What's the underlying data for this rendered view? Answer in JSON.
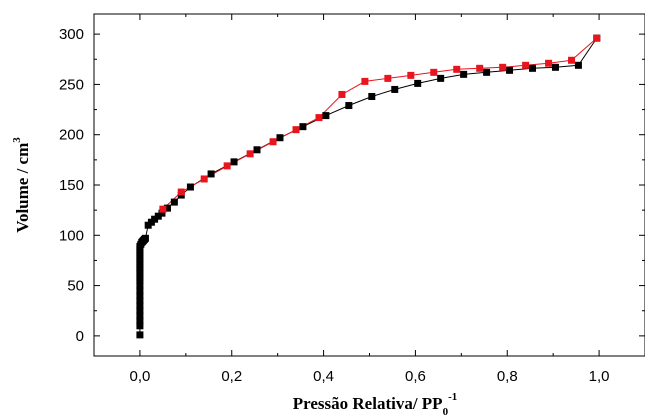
{
  "chart_data": {
    "type": "scatter",
    "xlabel": "Pressão Relativa/ PP",
    "xlabel_sub": "0",
    "xlabel_sup": "-1",
    "ylabel": "Volume / cm",
    "ylabel_sup": "3",
    "xlim": [
      -0.1,
      1.1
    ],
    "ylim": [
      -20,
      320
    ],
    "x_ticks": [
      0.0,
      0.2,
      0.4,
      0.6,
      0.8,
      1.0
    ],
    "x_tick_labels": [
      "0,0",
      "0,2",
      "0,4",
      "0,6",
      "0,8",
      "1,0"
    ],
    "y_ticks": [
      0,
      50,
      100,
      150,
      200,
      250,
      300
    ],
    "y_tick_labels": [
      "0",
      "50",
      "100",
      "150",
      "200",
      "250",
      "300"
    ],
    "grid": false,
    "series": [
      {
        "color": "#000000",
        "marker": "square",
        "x": [
          0.0,
          0.0,
          0.0,
          0.0,
          0.0,
          0.0,
          0.0,
          0.0,
          0.0,
          0.0,
          0.0,
          0.0,
          0.0,
          0.0,
          0.0,
          0.0,
          0.0,
          0.0,
          0.0,
          0.0,
          0.0,
          0.0,
          0.002,
          0.004,
          0.006,
          0.008,
          0.01,
          0.012,
          0.018,
          0.025,
          0.032,
          0.04,
          0.048,
          0.06,
          0.075,
          0.09,
          0.11,
          0.155,
          0.205,
          0.255,
          0.305,
          0.355,
          0.405,
          0.455,
          0.505,
          0.555,
          0.605,
          0.655,
          0.705,
          0.755,
          0.805,
          0.855,
          0.905,
          0.955,
          0.995
        ],
        "y": [
          1,
          10,
          15,
          20,
          25,
          30,
          35,
          40,
          45,
          50,
          55,
          58,
          62,
          65,
          68,
          71,
          74,
          77,
          80,
          83,
          86,
          89,
          91,
          93,
          94,
          95,
          96,
          97,
          110,
          113,
          116,
          119,
          122,
          127,
          133,
          140,
          148,
          161,
          173,
          185,
          197,
          208,
          219,
          229,
          238,
          245,
          251,
          256,
          260,
          262,
          264,
          266,
          267,
          269,
          296
        ]
      },
      {
        "color": "#e8141e",
        "marker": "square",
        "x": [
          0.05,
          0.09,
          0.14,
          0.19,
          0.24,
          0.29,
          0.34,
          0.39,
          0.44,
          0.49,
          0.54,
          0.59,
          0.64,
          0.69,
          0.74,
          0.79,
          0.84,
          0.89,
          0.94,
          0.995
        ],
        "y": [
          126,
          143,
          156,
          169,
          181,
          193,
          205,
          217,
          240,
          253,
          256,
          259,
          262,
          265,
          266,
          267,
          269,
          271,
          274,
          296
        ]
      }
    ]
  }
}
